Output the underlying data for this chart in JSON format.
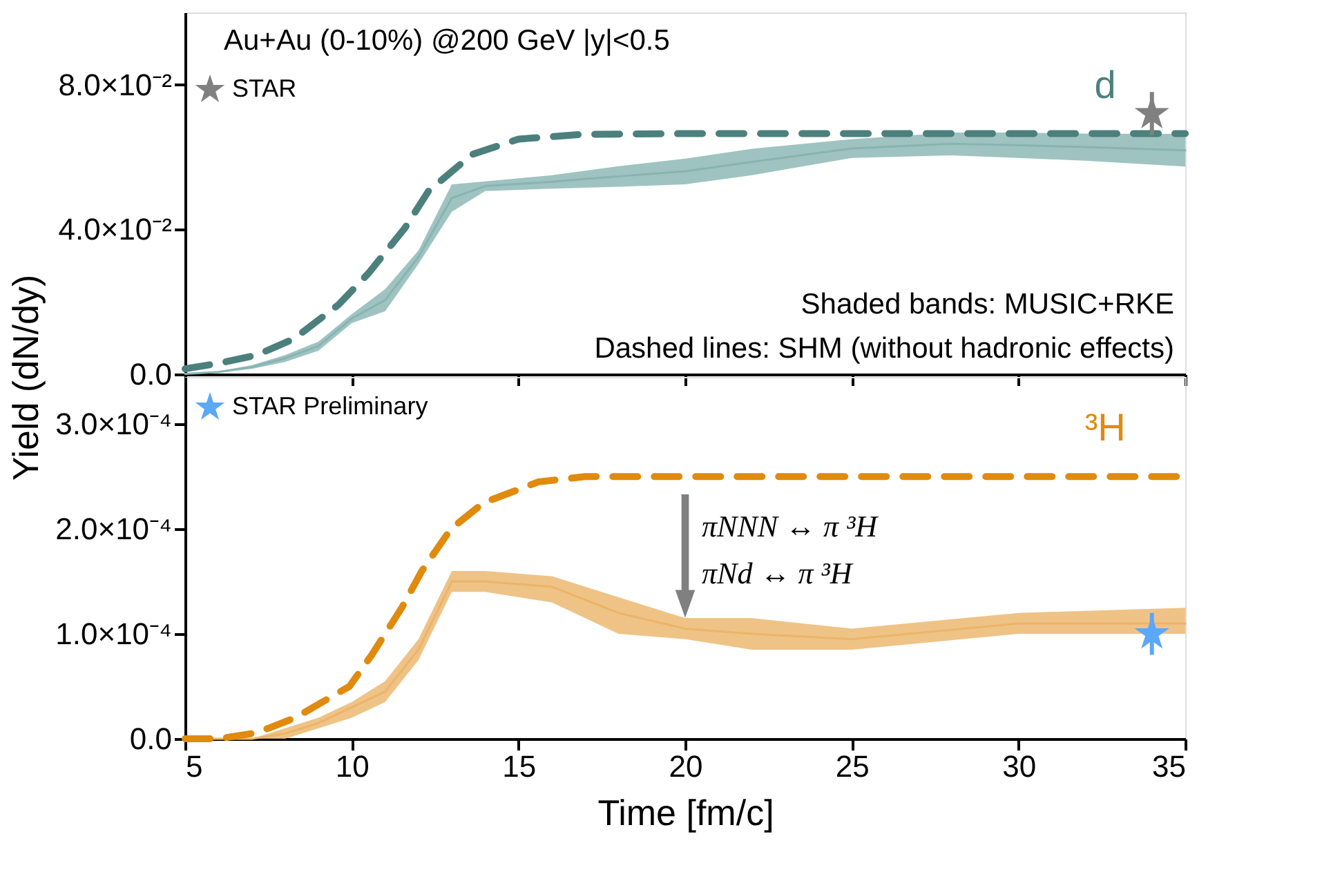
{
  "chart_data": [
    {
      "type": "line",
      "xlim": [
        5,
        35
      ],
      "xticks": [
        5,
        10,
        15,
        20,
        25,
        30,
        35
      ],
      "ylim": [
        0,
        0.1
      ],
      "yticks": [
        {
          "value": 0,
          "label": "0.0"
        },
        {
          "value": 0.04,
          "label": "4.0×10⁻²"
        },
        {
          "value": 0.08,
          "label": "8.0×10⁻²"
        }
      ],
      "ylabel": "Yield (dN/dy)",
      "grid": false,
      "legend": "top left",
      "tick_labels": "y",
      "annotations": [
        "Au+Au (0-10%) @200 GeV  |y|<0.5",
        "Shaded bands: MUSIC+RKE",
        "Dashed lines: SHM (without hadronic effects)"
      ],
      "series": [
        {
          "color": "#87b4b2",
          "x": [
            5,
            6,
            7,
            8,
            9,
            10,
            11,
            12,
            13,
            14,
            16,
            18,
            20,
            22,
            25,
            28,
            30,
            32,
            35
          ],
          "values": [
            0.0001,
            0.0006,
            0.002,
            0.0044,
            0.0078,
            0.0154,
            0.0205,
            0.0324,
            0.0487,
            0.052,
            0.0532,
            0.0547,
            0.0561,
            0.0587,
            0.0624,
            0.0637,
            0.0633,
            0.0628,
            0.0619
          ],
          "upper": [
            0.0002,
            0.0008,
            0.0025,
            0.0053,
            0.009,
            0.0166,
            0.0235,
            0.0342,
            0.0525,
            0.0533,
            0.055,
            0.0575,
            0.0596,
            0.0623,
            0.065,
            0.0668,
            0.0668,
            0.0665,
            0.0664
          ],
          "lower": [
            0,
            0.0004,
            0.0015,
            0.0034,
            0.0065,
            0.0141,
            0.0174,
            0.0305,
            0.0449,
            0.0506,
            0.0513,
            0.0518,
            0.0525,
            0.055,
            0.0598,
            0.0605,
            0.0598,
            0.059,
            0.0574
          ]
        },
        {
          "name": "d",
          "line_style": "dashed",
          "color": "#4b807d",
          "x": [
            5,
            6,
            7.15,
            8.27,
            9.6,
            10.5,
            11.6,
            12.3,
            13.6,
            15,
            16.9,
            20,
            25,
            30,
            35
          ],
          "values": [
            0.0015,
            0.003,
            0.0053,
            0.0098,
            0.0192,
            0.0279,
            0.0405,
            0.0506,
            0.0607,
            0.065,
            0.0663,
            0.0665,
            0.0665,
            0.0665,
            0.0665
          ]
        },
        {
          "name": "STAR",
          "type": "scatter",
          "marker": "star",
          "color": "#808080",
          "x": [
            34
          ],
          "values": [
            0.072
          ],
          "errors": [
            0.006
          ]
        }
      ]
    },
    {
      "type": "line",
      "xlim": [
        5,
        35
      ],
      "xticks": [
        5,
        10,
        15,
        20,
        25,
        30,
        35
      ],
      "ylim": [
        0,
        0.000345
      ],
      "yticks": [
        {
          "value": 0,
          "label": "0.0"
        },
        {
          "value": 0.0001,
          "label": "1.0×10⁻⁴"
        },
        {
          "value": 0.0002,
          "label": "2.0×10⁻⁴"
        },
        {
          "value": 0.0003,
          "label": "3.0×10⁻⁴"
        }
      ],
      "xlabel": "Time [fm/c]",
      "grid": false,
      "legend": "top left",
      "annotations": [
        {
          "text": "πNNN ↔ π ³H",
          "x": 20,
          "y": 0.000115
        },
        {
          "text": "πNd ↔ π ³H",
          "x": 20,
          "y": 0.000115
        }
      ],
      "series": [
        {
          "color": "#ebb468",
          "x": [
            5,
            6,
            7,
            8,
            9,
            10,
            11,
            12,
            13,
            14,
            16,
            18,
            20,
            22,
            25,
            30,
            35
          ],
          "values": [
            0,
            0,
            0,
            5e-06,
            1.5e-05,
            3e-05,
            4.5e-05,
            8.5e-05,
            0.00015,
            0.00015,
            0.000145,
            0.00012,
            0.000105,
            0.0001,
            9.5e-05,
            0.00011,
            0.00011
          ],
          "upper": [
            0,
            0,
            0,
            1e-05,
            2e-05,
            3.5e-05,
            5.5e-05,
            9.5e-05,
            0.00016,
            0.00016,
            0.000155,
            0.000135,
            0.000115,
            0.000115,
            0.000105,
            0.00012,
            0.000125
          ],
          "lower": [
            0,
            0,
            0,
            0,
            1e-05,
            2e-05,
            3.5e-05,
            7.5e-05,
            0.00014,
            0.00014,
            0.00013,
            0.0001,
            9.5e-05,
            8.5e-05,
            8.5e-05,
            0.0001,
            0.0001
          ]
        },
        {
          "name": "³H",
          "line_style": "dashed",
          "color": "#e08a0e",
          "x": [
            5,
            6,
            7,
            7.5,
            8.3,
            9.93,
            10.6,
            11.5,
            12.1,
            12.97,
            13.95,
            15.6,
            17,
            20,
            25,
            30,
            35
          ],
          "values": [
            0,
            0,
            5e-06,
            1e-05,
            2e-05,
            5e-05,
            8e-05,
            0.000125,
            0.00016,
            0.0002,
            0.000225,
            0.000245,
            0.00025,
            0.00025,
            0.00025,
            0.00025,
            0.00025
          ]
        },
        {
          "name": "STAR Preliminary",
          "type": "scatter",
          "marker": "star",
          "color": "#5ba8f7",
          "x": [
            34
          ],
          "values": [
            0.0001
          ],
          "errors": [
            2e-05
          ]
        }
      ]
    }
  ]
}
